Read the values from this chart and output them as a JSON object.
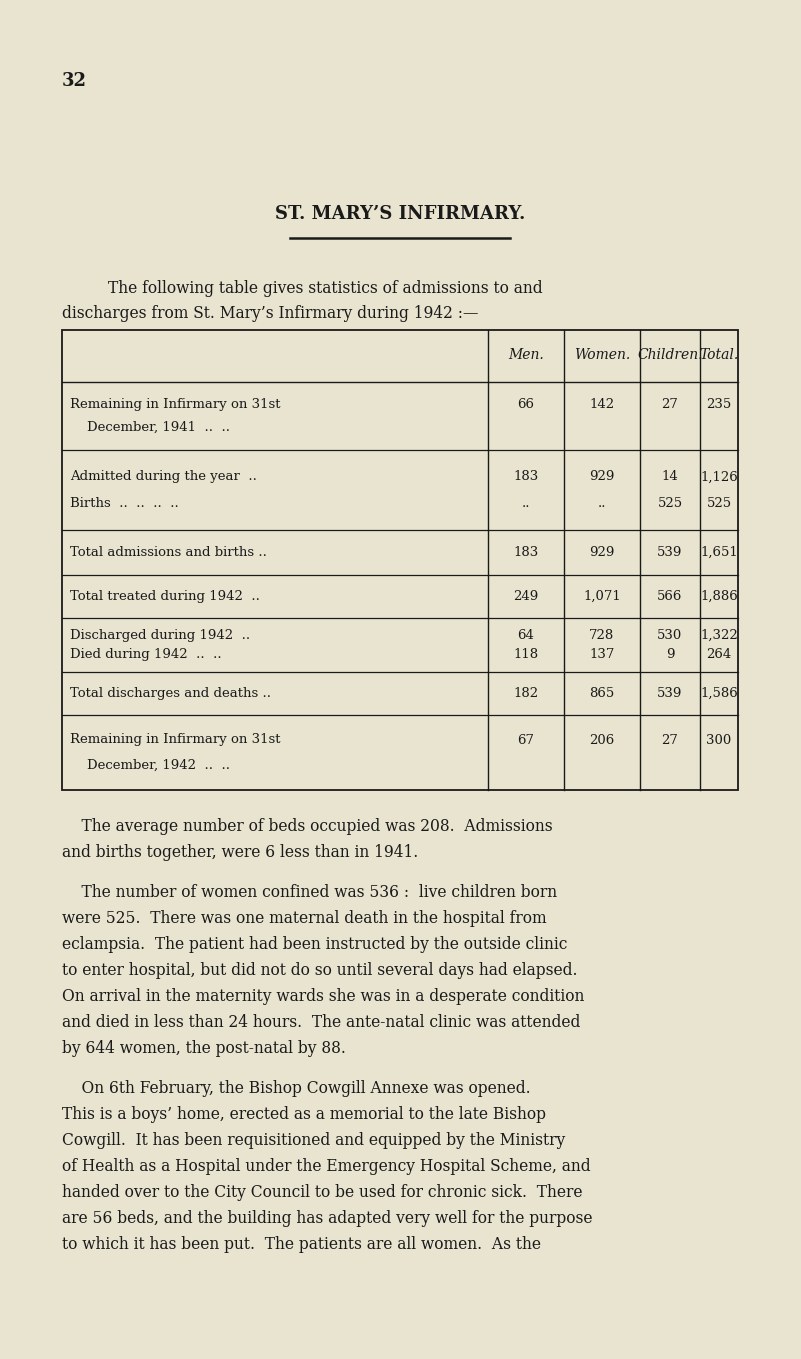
{
  "page_number": "32",
  "title": "ST. MARY’S INFIRMARY.",
  "bg_color": "#e8e4d0",
  "text_color": "#1a1a1a",
  "table_header_row": [
    "Men.",
    "Women.",
    "Children.",
    "Total."
  ],
  "table_rows": [
    {
      "label": [
        "Remaining in Infirmary on 31st",
        "    December, 1941  ..  .."
      ],
      "men": [
        "66",
        ""
      ],
      "women": [
        "142",
        ""
      ],
      "children": [
        "27",
        ""
      ],
      "total": [
        "235",
        ""
      ]
    },
    {
      "label": [
        "Admitted during the year  ..",
        "Births  ..  ..  ..  .."
      ],
      "men": [
        "183",
        ".."
      ],
      "women": [
        "929",
        ".."
      ],
      "children": [
        "14",
        "525"
      ],
      "total": [
        "1,126",
        "525"
      ]
    },
    {
      "label": [
        "Total admissions and births .."
      ],
      "men": [
        "183"
      ],
      "women": [
        "929"
      ],
      "children": [
        "539"
      ],
      "total": [
        "1,651"
      ]
    },
    {
      "label": [
        "Total treated during 1942  .."
      ],
      "men": [
        "249"
      ],
      "women": [
        "1,071"
      ],
      "children": [
        "566"
      ],
      "total": [
        "1,886"
      ]
    },
    {
      "label": [
        "Discharged during 1942  ..",
        "Died during 1942  ..  .."
      ],
      "men": [
        "64",
        "118"
      ],
      "women": [
        "728",
        "137"
      ],
      "children": [
        "530",
        "9"
      ],
      "total": [
        "1,322",
        "264"
      ]
    },
    {
      "label": [
        "Total discharges and deaths .."
      ],
      "men": [
        "182"
      ],
      "women": [
        "865"
      ],
      "children": [
        "539"
      ],
      "total": [
        "1,586"
      ]
    },
    {
      "label": [
        "Remaining in Infirmary on 31st",
        "    December, 1942  ..  .."
      ],
      "men": [
        "67",
        ""
      ],
      "women": [
        "206",
        ""
      ],
      "children": [
        "27",
        ""
      ],
      "total": [
        "300",
        ""
      ]
    }
  ],
  "para1_indent": "    The average number of beds occupied was 208.  Admissions",
  "para1_cont": "and births together, were 6 less than in 1941.",
  "para2_indent": "    The number of women confined was 536 :  live children born",
  "para2_lines": [
    "were 525.  There was one maternal death in the hospital from",
    "eclampsia.  The patient had been instructed by the outside clinic",
    "to enter hospital, but did not do so until several days had elapsed.",
    "On arrival in the maternity wards she was in a desperate condition",
    "and died in less than 24 hours.  The ante-natal clinic was attended",
    "by 644 women, the post-natal by 88."
  ],
  "para3_indent": "    On 6th February, the Bishop Cowgill Annexe was opened.",
  "para3_lines": [
    "This is a boys’ home, erected as a memorial to the late Bishop",
    "Cowgill.  It has been requisitioned and equipped by the Ministry",
    "of Health as a Hospital under the Emergency Hospital Scheme, and",
    "handed over to the City Council to be used for chronic sick.  There",
    "are 56 beds, and the building has adapted very well for the purpose",
    "to which it has been put.  The patients are all women.  As the"
  ]
}
